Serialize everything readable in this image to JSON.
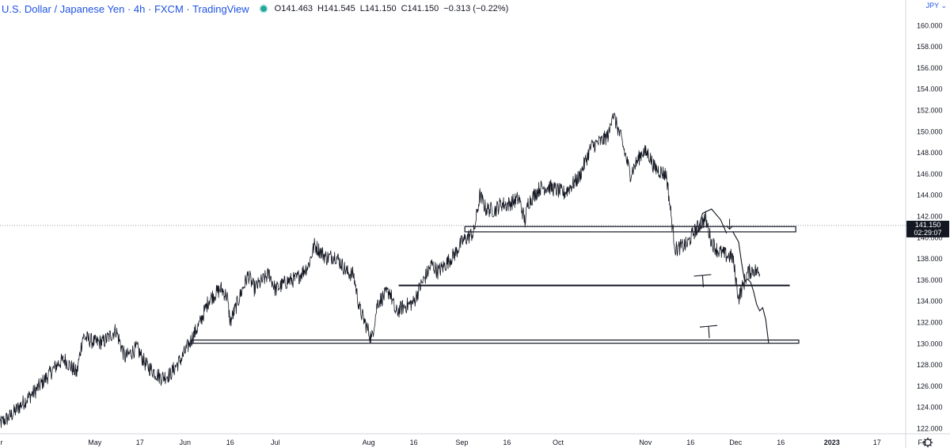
{
  "header": {
    "title": "U.S. Dollar / Japanese Yen · 4h · FXCM · TradingView",
    "open_label": "O",
    "open": "141.463",
    "high_label": "H",
    "high": "141.545",
    "low_label": "L",
    "low": "141.150",
    "close_label": "C",
    "close": "141.150",
    "change": "−0.313 (−0.22%)",
    "currency": "JPY"
  },
  "price_badge": {
    "price": "141.150",
    "countdown": "02:29:07",
    "value": 141.15
  },
  "colors": {
    "price": "#131722",
    "badge": "#131722",
    "title": "#1e53e5",
    "axis": "#131722"
  },
  "chart_data": {
    "type": "line",
    "title": "U.S. Dollar / Japanese Yen · 4h · FXCM · TradingView",
    "ylabel": "JPY",
    "xlabel": "",
    "ylim": [
      121.5,
      162.0
    ],
    "grid": false,
    "y_ticks": [
      "122.000",
      "124.000",
      "126.000",
      "128.000",
      "130.000",
      "132.000",
      "134.000",
      "136.000",
      "138.000",
      "140.000",
      "142.000",
      "144.000",
      "146.000",
      "148.000",
      "150.000",
      "152.000",
      "154.000",
      "156.000",
      "158.000",
      "160.000"
    ],
    "x_ticks": [
      "r",
      "May",
      "17",
      "Jun",
      "16",
      "Jul",
      "Aug",
      "16",
      "Sep",
      "16",
      "Oct",
      "Nov",
      "16",
      "Dec",
      "16",
      "2023",
      "17",
      "Fe"
    ],
    "x_tick_dates": [
      "2022-04-01",
      "2022-05-02",
      "2022-05-17",
      "2022-06-01",
      "2022-06-16",
      "2022-07-01",
      "2022-08-01",
      "2022-08-16",
      "2022-09-01",
      "2022-09-16",
      "2022-10-03",
      "2022-11-01",
      "2022-11-16",
      "2022-12-01",
      "2022-12-16",
      "2023-01-02",
      "2023-01-17",
      "2023-02-01"
    ],
    "series": [
      {
        "values": [
          [
            "2022-03-31",
            122.4
          ],
          [
            "2022-04-04",
            123.2
          ],
          [
            "2022-04-08",
            124.4
          ],
          [
            "2022-04-12",
            125.5
          ],
          [
            "2022-04-15",
            126.5
          ],
          [
            "2022-04-20",
            128.2
          ],
          [
            "2022-04-22",
            128.5
          ],
          [
            "2022-04-26",
            127.2
          ],
          [
            "2022-04-28",
            130.7
          ],
          [
            "2022-05-02",
            130.1
          ],
          [
            "2022-05-05",
            130.2
          ],
          [
            "2022-05-09",
            131.3
          ],
          [
            "2022-05-12",
            128.7
          ],
          [
            "2022-05-16",
            129.6
          ],
          [
            "2022-05-19",
            128.0
          ],
          [
            "2022-05-24",
            126.8
          ],
          [
            "2022-05-27",
            127.1
          ],
          [
            "2022-05-31",
            128.7
          ],
          [
            "2022-06-02",
            129.8
          ],
          [
            "2022-06-06",
            132.0
          ],
          [
            "2022-06-09",
            134.2
          ],
          [
            "2022-06-13",
            135.2
          ],
          [
            "2022-06-15",
            134.4
          ],
          [
            "2022-06-16",
            132.0
          ],
          [
            "2022-06-20",
            135.1
          ],
          [
            "2022-06-22",
            136.5
          ],
          [
            "2022-06-24",
            135.2
          ],
          [
            "2022-06-29",
            136.6
          ],
          [
            "2022-07-01",
            135.1
          ],
          [
            "2022-07-05",
            135.9
          ],
          [
            "2022-07-08",
            136.1
          ],
          [
            "2022-07-12",
            137.4
          ],
          [
            "2022-07-14",
            139.3
          ],
          [
            "2022-07-18",
            138.1
          ],
          [
            "2022-07-21",
            138.3
          ],
          [
            "2022-07-25",
            136.7
          ],
          [
            "2022-07-27",
            136.5
          ],
          [
            "2022-07-29",
            133.3
          ],
          [
            "2022-08-02",
            130.4
          ],
          [
            "2022-08-04",
            133.9
          ],
          [
            "2022-08-08",
            135.0
          ],
          [
            "2022-08-10",
            132.9
          ],
          [
            "2022-08-12",
            133.4
          ],
          [
            "2022-08-16",
            133.9
          ],
          [
            "2022-08-18",
            135.3
          ],
          [
            "2022-08-22",
            137.5
          ],
          [
            "2022-08-24",
            136.8
          ],
          [
            "2022-08-26",
            137.3
          ],
          [
            "2022-08-30",
            138.6
          ],
          [
            "2022-09-01",
            139.6
          ],
          [
            "2022-09-05",
            140.5
          ],
          [
            "2022-09-07",
            144.0
          ],
          [
            "2022-09-09",
            142.7
          ],
          [
            "2022-09-12",
            142.6
          ],
          [
            "2022-09-14",
            143.2
          ],
          [
            "2022-09-16",
            143.1
          ],
          [
            "2022-09-20",
            143.7
          ],
          [
            "2022-09-22",
            141.5
          ],
          [
            "2022-09-23",
            143.3
          ],
          [
            "2022-09-27",
            144.7
          ],
          [
            "2022-09-30",
            144.8
          ],
          [
            "2022-10-05",
            144.2
          ],
          [
            "2022-10-10",
            145.7
          ],
          [
            "2022-10-14",
            148.6
          ],
          [
            "2022-10-18",
            149.2
          ],
          [
            "2022-10-20",
            149.8
          ],
          [
            "2022-10-21",
            151.9
          ],
          [
            "2022-10-24",
            149.3
          ],
          [
            "2022-10-27",
            146.0
          ],
          [
            "2022-10-31",
            148.1
          ],
          [
            "2022-11-02",
            147.9
          ],
          [
            "2022-11-04",
            146.6
          ],
          [
            "2022-11-08",
            145.9
          ],
          [
            "2022-11-10",
            141.0
          ],
          [
            "2022-11-11",
            138.9
          ],
          [
            "2022-11-15",
            139.4
          ],
          [
            "2022-11-17",
            140.5
          ],
          [
            "2022-11-21",
            141.8
          ],
          [
            "2022-11-23",
            139.6
          ],
          [
            "2022-11-25",
            138.8
          ],
          [
            "2022-11-28",
            138.3
          ],
          [
            "2022-11-30",
            138.2
          ],
          [
            "2022-12-02",
            134.3
          ],
          [
            "2022-12-05",
            136.7
          ],
          [
            "2022-12-07",
            137.0
          ],
          [
            "2022-12-09",
            136.6
          ]
        ]
      }
    ],
    "annotations": [
      {
        "type": "box",
        "x0": "2022-09-02",
        "x1": "2022-12-21",
        "y0": 140.55,
        "y1": 141.05
      },
      {
        "type": "line",
        "x0": "2022-08-11",
        "x1": "2022-12-19",
        "y": 135.5
      },
      {
        "type": "box",
        "x0": "2022-06-03",
        "x1": "2022-12-22",
        "y0": 130.05,
        "y1": 130.35
      },
      {
        "type": "freehand",
        "points": [
          [
            "2022-11-30",
            140.6
          ],
          [
            "2022-12-02",
            139.6
          ],
          [
            "2022-12-03",
            137.6
          ],
          [
            "2022-12-04",
            135.9
          ],
          [
            "2022-12-05",
            136.1
          ],
          [
            "2022-12-06",
            135.8
          ],
          [
            "2022-12-07",
            134.9
          ],
          [
            "2022-12-08",
            133.7
          ],
          [
            "2022-12-09",
            133.1
          ],
          [
            "2022-12-10",
            133.4
          ],
          [
            "2022-12-11",
            132.3
          ],
          [
            "2022-12-12",
            130.0
          ]
        ]
      },
      {
        "type": "arc",
        "points": [
          [
            "2022-11-18",
            140.2
          ],
          [
            "2022-11-20",
            142.3
          ],
          [
            "2022-11-23",
            142.7
          ],
          [
            "2022-11-26",
            141.7
          ],
          [
            "2022-11-28",
            140.4
          ]
        ]
      },
      {
        "type": "marker",
        "x": "2022-11-20",
        "y": 136.3
      },
      {
        "type": "marker",
        "x": "2022-11-22",
        "y": 131.5
      },
      {
        "type": "arrow",
        "x": "2022-11-29",
        "y": 141.1
      }
    ]
  }
}
